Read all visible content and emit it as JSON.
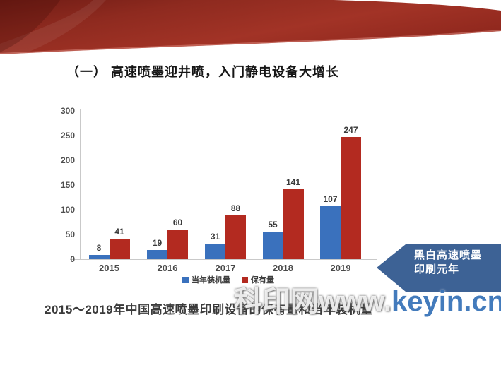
{
  "slide": {
    "title": "（一） 高速喷墨迎井喷，入门静电设备大增长",
    "caption": "2015～2019年中国高速喷墨印刷设备的保有量和当年装机量",
    "callout": {
      "line1": "黑白高速喷墨",
      "line2": "印刷元年",
      "color": "#3d6295"
    },
    "watermark": {
      "prefix": "科印网www.",
      "suffix": "keyin.cn"
    }
  },
  "chart_data": {
    "type": "bar",
    "categories": [
      "2015",
      "2016",
      "2017",
      "2018",
      "2019"
    ],
    "series": [
      {
        "name": "当年装机量",
        "color": "#3a71bd",
        "values": [
          8,
          19,
          31,
          55,
          107
        ]
      },
      {
        "name": "保有量",
        "color": "#b32a20",
        "values": [
          41,
          60,
          88,
          141,
          247
        ]
      }
    ],
    "title": "",
    "xlabel": "",
    "ylabel": "",
    "ylim": [
      0,
      300
    ],
    "yticks": [
      0,
      50,
      100,
      150,
      200,
      250,
      300
    ],
    "grid": false,
    "legend_position": "bottom",
    "value_labels": true
  }
}
